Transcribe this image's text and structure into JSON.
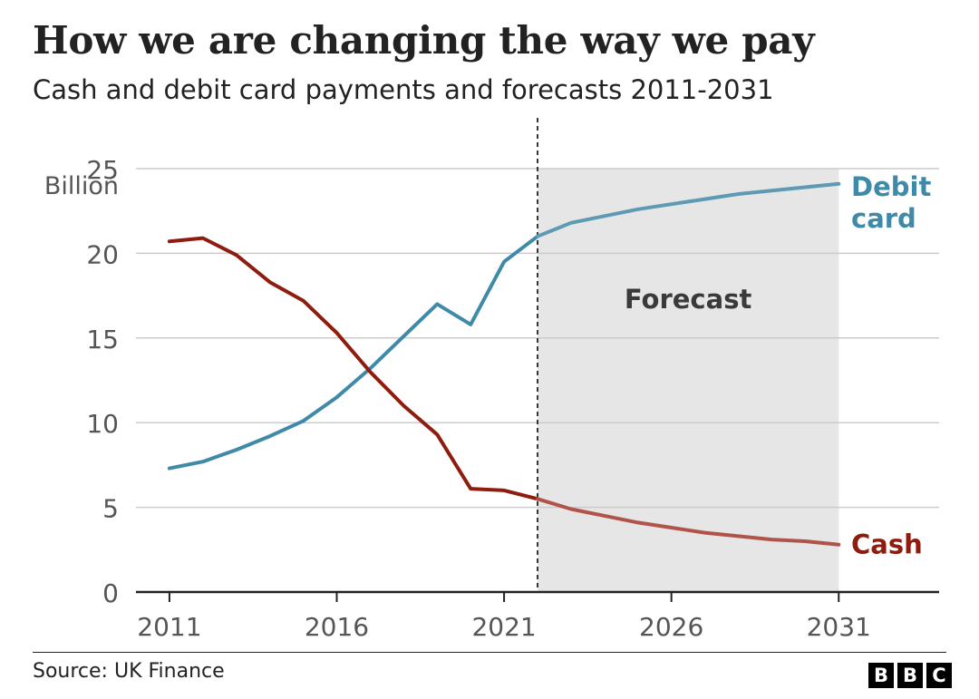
{
  "title": "How we are changing the way we pay",
  "subtitle": "Cash and debit card payments and forecasts 2011-2031",
  "source": "Source: UK Finance",
  "logo": [
    "B",
    "B",
    "C"
  ],
  "colors": {
    "cash": "#8e1c0f",
    "cash_forecast": "#b0544b",
    "debit": "#3f8aa8",
    "debit_forecast": "#5d9ab4",
    "forecast_shade": "#e6e6e6",
    "grid": "#cccccc"
  },
  "chart_data": {
    "type": "line",
    "title": "How we are changing the way we pay",
    "subtitle": "Cash and debit card payments and forecasts 2011-2031",
    "ylabel": "Billion",
    "xlim": [
      2010,
      2034
    ],
    "ylim": [
      0,
      25
    ],
    "x_ticks": [
      2011,
      2016,
      2021,
      2026,
      2031
    ],
    "y_ticks": [
      0,
      5,
      10,
      15,
      20,
      25
    ],
    "grid": "horizontal",
    "forecast_region": {
      "start": 2022,
      "end": 2031,
      "label": "Forecast"
    },
    "series": [
      {
        "name": "Debit card",
        "color": "#3f8aa8",
        "x": [
          2011,
          2012,
          2013,
          2014,
          2015,
          2016,
          2017,
          2018,
          2019,
          2020,
          2021,
          2022,
          2023,
          2024,
          2025,
          2026,
          2027,
          2028,
          2029,
          2030,
          2031
        ],
        "values": [
          7.3,
          7.7,
          8.4,
          9.2,
          10.1,
          11.5,
          13.2,
          15.1,
          17.0,
          15.8,
          19.5,
          21.0,
          21.8,
          22.2,
          22.6,
          22.9,
          23.2,
          23.5,
          23.7,
          23.9,
          24.1
        ]
      },
      {
        "name": "Cash",
        "color": "#8e1c0f",
        "x": [
          2011,
          2012,
          2013,
          2014,
          2015,
          2016,
          2017,
          2018,
          2019,
          2020,
          2021,
          2022,
          2023,
          2024,
          2025,
          2026,
          2027,
          2028,
          2029,
          2030,
          2031
        ],
        "values": [
          20.7,
          20.9,
          19.9,
          18.3,
          17.2,
          15.3,
          13.0,
          11.0,
          9.3,
          6.1,
          6.0,
          5.5,
          4.9,
          4.5,
          4.1,
          3.8,
          3.5,
          3.3,
          3.1,
          3.0,
          2.8
        ]
      }
    ],
    "series_labels": {
      "debit": [
        "Debit",
        "card"
      ],
      "cash": [
        "Cash"
      ]
    }
  }
}
